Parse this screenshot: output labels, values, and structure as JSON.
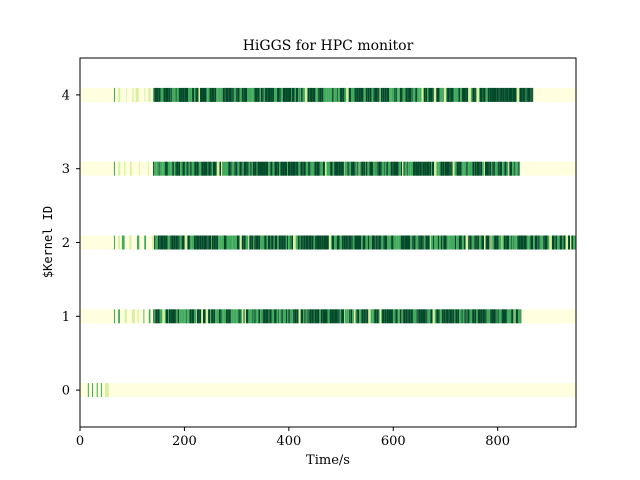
{
  "chart_data": {
    "type": "timeline",
    "title": "HiGGS for HPC monitor",
    "xlabel": "Time/s",
    "ylabel": "$Kernel ID",
    "xlim": [
      0,
      950
    ],
    "ylim": [
      -0.5,
      4.5
    ],
    "x_ticks": [
      0,
      200,
      400,
      600,
      800
    ],
    "y_ticks": [
      0,
      1,
      2,
      3,
      4
    ],
    "grid": false,
    "colors": {
      "light": "#ffffe0",
      "yellow_green": "#d9f0a3",
      "mid_green": "#41ab5d",
      "dark_green": "#004a2a"
    },
    "lanes": [
      {
        "kernel": 0,
        "segments": [
          [
            0,
            950,
            "light"
          ],
          [
            15,
            17,
            "mid_green"
          ],
          [
            23,
            25,
            "mid_green"
          ],
          [
            32,
            34,
            "mid_green"
          ],
          [
            40,
            42,
            "mid_green"
          ],
          [
            48,
            55,
            "yellow_green"
          ]
        ]
      },
      {
        "kernel": 1,
        "start": 65,
        "end": 845,
        "tail_end": 950,
        "pattern": "dense"
      },
      {
        "kernel": 2,
        "start": 65,
        "end": 950,
        "tail_end": 950,
        "pattern": "dense"
      },
      {
        "kernel": 3,
        "start": 65,
        "end": 842,
        "tail_end": 950,
        "pattern": "dense"
      },
      {
        "kernel": 4,
        "start": 65,
        "end": 868,
        "tail_end": 950,
        "pattern": "dense"
      }
    ]
  }
}
